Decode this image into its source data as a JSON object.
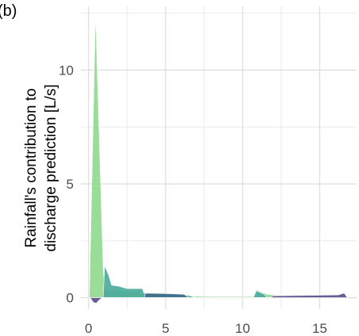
{
  "panel_label": "(b)",
  "chart_data": {
    "type": "area",
    "title": "",
    "xlabel": "",
    "ylabel_lines": [
      "Rainfall's contribution to",
      "discharge prediction [L/s]"
    ],
    "xlim": [
      -0.5,
      17.4
    ],
    "ylim": [
      -0.5,
      12.8
    ],
    "xticks": [
      0,
      5,
      10,
      15
    ],
    "yticks": [
      0,
      5,
      10
    ],
    "grid": true,
    "legend": "none",
    "series": [
      {
        "color": "#8ed98e",
        "points": [
          [
            0.05,
            0
          ],
          [
            0.45,
            12.5
          ],
          [
            0.95,
            1.3
          ],
          [
            1.05,
            0.4
          ],
          [
            1.5,
            0.35
          ],
          [
            2.5,
            0.3
          ],
          [
            4,
            0.15
          ],
          [
            6,
            0.08
          ],
          [
            8,
            0.05
          ],
          [
            10.7,
            0.05
          ],
          [
            10.9,
            0.35
          ],
          [
            11.2,
            0.25
          ],
          [
            11.6,
            0.15
          ],
          [
            12.5,
            0.08
          ],
          [
            14,
            0.06
          ],
          [
            16.7,
            0.05
          ],
          [
            16.8,
            0
          ]
        ]
      },
      {
        "color": "#4aaa9c",
        "points": [
          [
            0.95,
            0
          ],
          [
            1.05,
            1.4
          ],
          [
            1.3,
            1.0
          ],
          [
            1.5,
            0.55
          ],
          [
            2.0,
            0.5
          ],
          [
            2.5,
            0.4
          ],
          [
            3.5,
            0.4
          ],
          [
            3.6,
            0.2
          ],
          [
            5.5,
            0.15
          ],
          [
            6.5,
            0.1
          ],
          [
            7,
            0
          ],
          [
            10.7,
            0
          ],
          [
            10.9,
            0.3
          ],
          [
            11.4,
            0.15
          ],
          [
            11.6,
            0
          ]
        ]
      },
      {
        "color": "#3f6a8a",
        "points": [
          [
            3.6,
            0
          ],
          [
            3.7,
            0.2
          ],
          [
            5,
            0.18
          ],
          [
            6.2,
            0.15
          ],
          [
            6.5,
            0
          ]
        ]
      },
      {
        "color": "#5a4a8c",
        "points": [
          [
            0.1,
            0
          ],
          [
            0.3,
            -0.2
          ],
          [
            0.5,
            -0.25
          ],
          [
            0.7,
            -0.1
          ],
          [
            0.9,
            0
          ],
          [
            11.8,
            0
          ],
          [
            12.0,
            0.08
          ],
          [
            16.2,
            0.12
          ],
          [
            16.6,
            0.2
          ],
          [
            16.8,
            0
          ]
        ]
      }
    ]
  }
}
